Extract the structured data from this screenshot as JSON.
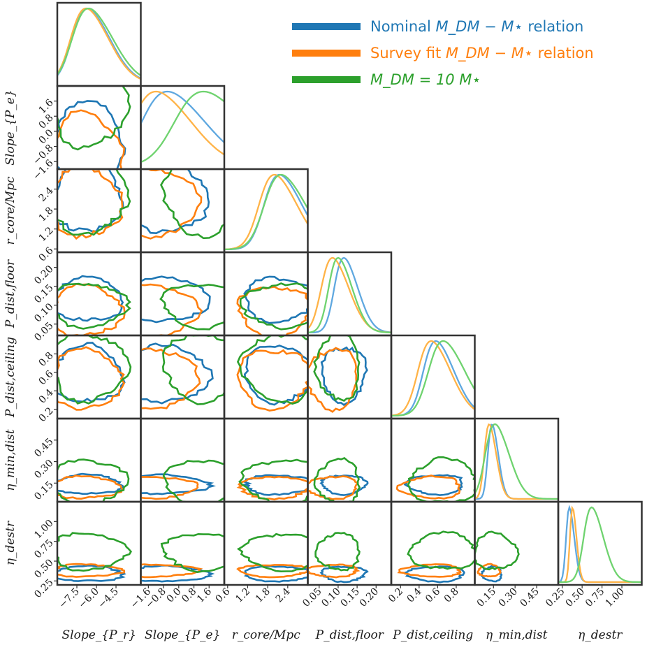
{
  "chart_data": {
    "type": "corner",
    "parameters": [
      {
        "id": "slope_pr",
        "label": "Slope_{P_r}",
        "range": [
          -9,
          -2.6
        ],
        "ticks": [
          -7.5,
          -6.0,
          -4.5
        ],
        "tick_labels": [
          "−7.5",
          "−6.0",
          "−4.5"
        ]
      },
      {
        "id": "slope_pe",
        "label": "Slope_{P_e}",
        "range": [
          -2.0,
          2.4
        ],
        "ticks": [
          -1.6,
          -0.8,
          0.0,
          0.8,
          1.6
        ],
        "tick_labels": [
          "−1.6",
          "−0.8",
          "0.0",
          "0.8",
          "1.6"
        ]
      },
      {
        "id": "r_core",
        "label": "r_core/Mpc",
        "range": [
          0.5,
          3.0
        ],
        "ticks": [
          0.6,
          1.2,
          1.8,
          2.4
        ],
        "tick_labels": [
          "0.6",
          "1.2",
          "1.8",
          "2.4"
        ]
      },
      {
        "id": "p_floor",
        "label": "P_dist,floor",
        "range": [
          0.02,
          0.24
        ],
        "ticks": [
          0.05,
          0.1,
          0.15,
          0.2
        ],
        "tick_labels": [
          "0.05",
          "0.10",
          "0.15",
          "0.20"
        ]
      },
      {
        "id": "p_ceiling",
        "label": "P_dist,ceiling",
        "range": [
          0.1,
          1.0
        ],
        "ticks": [
          0.2,
          0.4,
          0.6,
          0.8
        ],
        "tick_labels": [
          "0.2",
          "0.4",
          "0.6",
          "0.8"
        ]
      },
      {
        "id": "eta_min",
        "label": "η_min,dist",
        "range": [
          0.02,
          0.6
        ],
        "ticks": [
          0.15,
          0.3,
          0.45
        ],
        "tick_labels": [
          "0.15",
          "0.30",
          "0.45"
        ]
      },
      {
        "id": "eta_destr",
        "label": "η_destr",
        "range": [
          0.2,
          1.25
        ],
        "ticks": [
          0.25,
          0.5,
          0.75,
          1.0
        ],
        "tick_labels": [
          "0.25",
          "0.50",
          "0.75",
          "1.00"
        ]
      }
    ],
    "series": [
      {
        "name": "Nominal M_DM − M⋆ relation",
        "legend_prefix": "Nominal ",
        "legend_math": "M_DM − M⋆",
        "legend_suffix": " relation",
        "color": "#1f77b4",
        "light_color": "#5fa8e0",
        "peaks": [
          -6.7,
          -0.6,
          2.15,
          0.115,
          0.58,
          0.14,
          0.34
        ],
        "widths": [
          1.4,
          1.6,
          0.55,
          0.03,
          0.16,
          0.035,
          0.05
        ]
      },
      {
        "name": "Survey fit M_DM − M⋆ relation",
        "legend_prefix": "Survey fit ",
        "legend_math": "M_DM − M⋆",
        "legend_suffix": " relation",
        "color": "#ff7f0e",
        "light_color": "#ffb347",
        "peaks": [
          -6.8,
          -1.2,
          2.0,
          0.085,
          0.53,
          0.12,
          0.38
        ],
        "widths": [
          1.4,
          1.5,
          0.55,
          0.035,
          0.17,
          0.04,
          0.04
        ]
      },
      {
        "name": "M_DM = 10 M⋆",
        "legend_prefix": "",
        "legend_math": "M_DM = 10 M⋆",
        "legend_suffix": "",
        "color": "#2ca02c",
        "light_color": "#6fd36f",
        "peaks": [
          -6.6,
          1.3,
          2.2,
          0.1,
          0.66,
          0.16,
          0.62
        ],
        "widths": [
          1.5,
          1.8,
          0.6,
          0.03,
          0.19,
          0.08,
          0.12
        ]
      }
    ],
    "title": "",
    "legend_position": "top-right",
    "grid": false
  }
}
